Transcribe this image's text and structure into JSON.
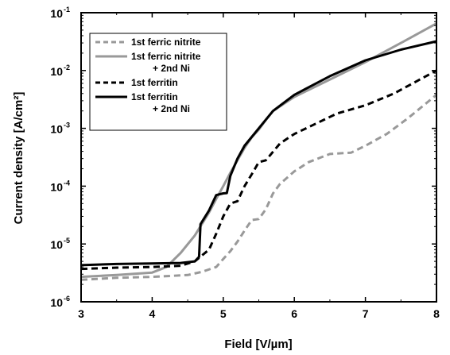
{
  "chart_data": {
    "type": "line",
    "xlabel": "Field [V/µm]",
    "ylabel": "Current density [A/cm²]",
    "xlim": [
      3,
      8
    ],
    "ylim": [
      1e-06,
      0.1
    ],
    "yscale": "log",
    "grid": false,
    "legend_position": "top-left",
    "x_ticks": [
      3,
      4,
      5,
      6,
      7,
      8
    ],
    "x_tick_labels": [
      "3",
      "4",
      "5",
      "6",
      "7",
      "8"
    ],
    "y_ticks": [
      1e-06,
      1e-05,
      0.0001,
      0.001,
      0.01,
      0.1
    ],
    "y_tick_labels": [
      {
        "base": "10",
        "exp": "-6"
      },
      {
        "base": "10",
        "exp": "-5"
      },
      {
        "base": "10",
        "exp": "-4"
      },
      {
        "base": "10",
        "exp": "-3"
      },
      {
        "base": "10",
        "exp": "-2"
      },
      {
        "base": "10",
        "exp": "-1"
      }
    ],
    "series": [
      {
        "name": "1st ferric nitrite",
        "color": "#999999",
        "dash": "dashed",
        "x": [
          3.0,
          3.5,
          4.0,
          4.5,
          4.7,
          4.9,
          5.0,
          5.1,
          5.2,
          5.3,
          5.4,
          5.5,
          5.6,
          5.7,
          5.8,
          6.0,
          6.2,
          6.5,
          6.8,
          7.0,
          7.3,
          7.6,
          8.0
        ],
        "y": [
          2.4e-06,
          2.6e-06,
          2.7e-06,
          2.9e-06,
          3.3e-06,
          4e-06,
          5.5e-06,
          7.5e-06,
          1.1e-05,
          1.7e-05,
          2.6e-05,
          2.7e-05,
          4e-05,
          7.5e-05,
          0.00011,
          0.00018,
          0.00026,
          0.00036,
          0.00038,
          0.0005,
          0.0008,
          0.0015,
          0.0038
        ]
      },
      {
        "name": "1st ferric nitrite + 2nd Ni",
        "color": "#999999",
        "dash": "solid",
        "x": [
          3.0,
          3.5,
          4.0,
          4.2,
          4.4,
          4.6,
          4.8,
          4.9,
          5.0,
          5.1,
          5.2,
          5.3,
          5.4,
          5.5,
          5.6,
          5.7,
          6.0,
          6.5,
          7.0,
          7.5,
          8.0
        ],
        "y": [
          2.7e-06,
          2.9e-06,
          3.2e-06,
          4e-06,
          7e-06,
          1.4e-05,
          3.5e-05,
          6e-05,
          0.0001,
          0.00017,
          0.00028,
          0.00046,
          0.0007,
          0.00095,
          0.0014,
          0.002,
          0.0035,
          0.007,
          0.014,
          0.03,
          0.065
        ]
      },
      {
        "name": "1st ferritin",
        "color": "#000000",
        "dash": "dashed",
        "x": [
          3.0,
          3.5,
          4.0,
          4.4,
          4.6,
          4.8,
          4.9,
          5.0,
          5.1,
          5.2,
          5.3,
          5.4,
          5.5,
          5.6,
          5.8,
          6.0,
          6.3,
          6.6,
          7.0,
          7.4,
          8.0
        ],
        "y": [
          3.7e-06,
          3.9e-06,
          4e-06,
          4.2e-06,
          5e-06,
          8e-06,
          1.5e-05,
          3e-05,
          5e-05,
          5.5e-05,
          0.0001,
          0.00016,
          0.00026,
          0.00028,
          0.00055,
          0.0008,
          0.0012,
          0.0018,
          0.0025,
          0.004,
          0.01
        ]
      },
      {
        "name": "1st ferritin + 2nd Ni",
        "color": "#000000",
        "dash": "solid",
        "x": [
          3.0,
          3.5,
          4.0,
          4.4,
          4.6,
          4.66,
          4.68,
          4.8,
          4.9,
          5.0,
          5.05,
          5.1,
          5.2,
          5.3,
          5.5,
          5.7,
          6.0,
          6.5,
          7.0,
          7.5,
          8.0
        ],
        "y": [
          4.3e-06,
          4.5e-06,
          4.6e-06,
          4.7e-06,
          5e-06,
          6e-06,
          2.2e-05,
          3.8e-05,
          7e-05,
          7.5e-05,
          7.6e-05,
          0.00015,
          0.0003,
          0.0005,
          0.001,
          0.002,
          0.0038,
          0.008,
          0.015,
          0.023,
          0.032
        ]
      }
    ],
    "legend": [
      {
        "lines": [
          "1st ferric nitrite"
        ],
        "series": 0
      },
      {
        "lines": [
          "1st ferric nitrite",
          "+ 2nd Ni"
        ],
        "series": 1
      },
      {
        "lines": [
          "1st ferritin"
        ],
        "series": 2
      },
      {
        "lines": [
          "1st ferritin",
          "+ 2nd Ni"
        ],
        "series": 3
      }
    ]
  }
}
